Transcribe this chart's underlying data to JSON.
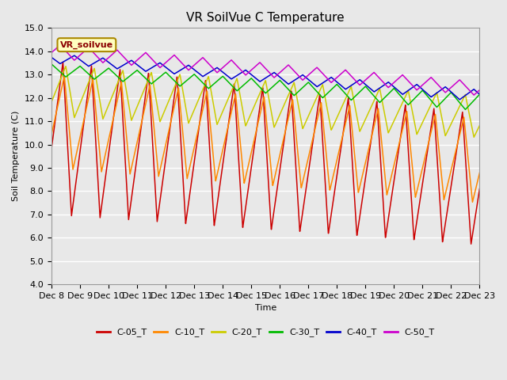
{
  "title": "VR SoilVue C Temperature",
  "ylabel": "Soil Temperature (C)",
  "xlabel": "Time",
  "ylim": [
    4.0,
    15.0
  ],
  "ytick_labels": [
    "4.0",
    "5.0",
    "6.0",
    "7.0",
    "8.0",
    "9.0",
    "10.0",
    "11.0",
    "12.0",
    "13.0",
    "14.0",
    "15.0"
  ],
  "xtick_labels": [
    "Dec 8",
    "Dec 9",
    "Dec 10",
    "Dec 11",
    "Dec 12",
    "Dec 13",
    "Dec 14",
    "Dec 15",
    "Dec 16",
    "Dec 17",
    "Dec 18",
    "Dec 19",
    "Dec 20",
    "Dec 21",
    "Dec 22",
    "Dec 23"
  ],
  "series_names": [
    "C-05_T",
    "C-10_T",
    "C-20_T",
    "C-30_T",
    "C-40_T",
    "C-50_T"
  ],
  "colors": {
    "C-05_T": "#cc0000",
    "C-10_T": "#ff8800",
    "C-20_T": "#cccc00",
    "C-30_T": "#00bb00",
    "C-40_T": "#0000cc",
    "C-50_T": "#cc00cc"
  },
  "legend_label": "VR_soilvue",
  "background_color": "#e8e8e8",
  "grid_color": "#ffffff",
  "title_fontsize": 11,
  "label_fontsize": 8,
  "tick_fontsize": 8
}
